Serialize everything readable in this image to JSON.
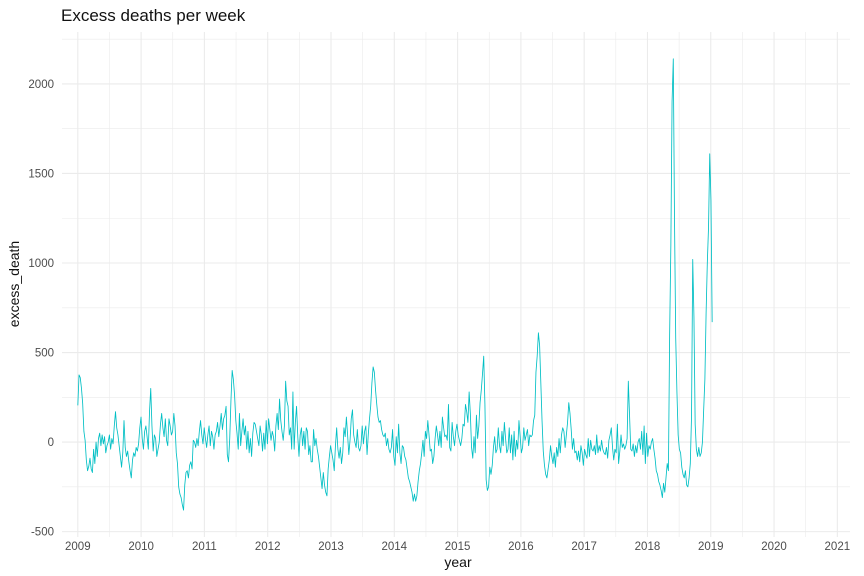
{
  "chart_data": {
    "type": "line",
    "title": "Excess deaths per week",
    "xlabel": "year",
    "ylabel": "excess_death",
    "xlim": [
      2008.75,
      2021.2
    ],
    "ylim": [
      -530,
      2290
    ],
    "xticks": [
      "2009",
      "2010",
      "2011",
      "2012",
      "2013",
      "2014",
      "2015",
      "2016",
      "2017",
      "2018",
      "2019",
      "2020",
      "2021"
    ],
    "yticks": [
      "-500",
      "0",
      "500",
      "1000",
      "1500",
      "2000"
    ],
    "grid": true,
    "legend": "none",
    "line_color": "#00BFC4",
    "series": [
      {
        "x_start": 2009.0,
        "x_step": 0.0192,
        "values": [
          205,
          375,
          360,
          300,
          215,
          60,
          10,
          -100,
          -160,
          -135,
          -90,
          -150,
          -170,
          -40,
          -120,
          0,
          -80,
          20,
          50,
          -20,
          40,
          -10,
          30,
          -60,
          -20,
          0,
          40,
          -40,
          20,
          -10,
          90,
          170,
          80,
          40,
          -20,
          -80,
          -140,
          -60,
          120,
          -30,
          -80,
          -50,
          -110,
          -160,
          -200,
          -100,
          -60,
          -80,
          -30,
          -50,
          -10,
          80,
          140,
          20,
          -40,
          60,
          90,
          30,
          -40,
          170,
          300,
          90,
          -50,
          40,
          20,
          -80,
          -40,
          0,
          100,
          160,
          80,
          30,
          130,
          10,
          -20,
          130,
          90,
          40,
          60,
          160,
          90,
          -60,
          -120,
          -250,
          -290,
          -310,
          -350,
          -380,
          -240,
          -170,
          -160,
          -200,
          -130,
          -110,
          -150,
          10,
          0,
          -30,
          20,
          -20,
          60,
          120,
          40,
          -10,
          80,
          20,
          -30,
          40,
          90,
          -20,
          60,
          30,
          -40,
          40,
          60,
          110,
          30,
          90,
          160,
          70,
          130,
          150,
          200,
          -70,
          -110,
          20,
          230,
          400,
          350,
          260,
          120,
          50,
          -40,
          160,
          -20,
          60,
          130,
          40,
          90,
          -40,
          60,
          -60,
          20,
          -80,
          50,
          110,
          100,
          60,
          20,
          -20,
          90,
          40,
          -50,
          50,
          -40,
          120,
          -10,
          130,
          70,
          10,
          60,
          30,
          -50,
          90,
          160,
          70,
          240,
          120,
          60,
          10,
          90,
          340,
          230,
          200,
          40,
          80,
          -40,
          280,
          -40,
          110,
          200,
          30,
          -80,
          40,
          80,
          -20,
          60,
          -40,
          80,
          60,
          -70,
          -20,
          -110,
          -110,
          70,
          -20,
          20,
          -40,
          -80,
          -140,
          -200,
          -260,
          -170,
          -240,
          -280,
          -300,
          -150,
          -80,
          -20,
          -60,
          -100,
          -160,
          -20,
          80,
          -40,
          -90,
          -30,
          -120,
          -60,
          80,
          30,
          140,
          40,
          -70,
          10,
          130,
          180,
          40,
          0,
          -30,
          70,
          -30,
          -50,
          -20,
          90,
          -10,
          60,
          90,
          -70,
          40,
          130,
          200,
          330,
          420,
          390,
          290,
          210,
          140,
          110,
          120,
          70,
          40,
          30,
          50,
          -20,
          20,
          -40,
          -60,
          -30,
          70,
          -80,
          -130,
          30,
          -60,
          100,
          -60,
          -120,
          -20,
          -30,
          -80,
          -100,
          -150,
          -200,
          -220,
          -250,
          -280,
          -330,
          -290,
          -330,
          -300,
          -220,
          -160,
          -120,
          -60,
          10,
          -80,
          60,
          20,
          120,
          40,
          -50,
          -40,
          -120,
          -80,
          20,
          90,
          40,
          -20,
          60,
          -30,
          140,
          80,
          30,
          40,
          10,
          210,
          -30,
          -50,
          110,
          30,
          -20,
          60,
          100,
          40,
          10,
          -20,
          20,
          100,
          90,
          210,
          170,
          110,
          280,
          160,
          -30,
          -90,
          30,
          -60,
          150,
          20,
          90,
          220,
          290,
          380,
          480,
          210,
          -210,
          -270,
          -250,
          -140,
          -180,
          -130,
          -30,
          30,
          -60,
          -40,
          80,
          -20,
          -60,
          60,
          -20,
          110,
          20,
          -60,
          -40,
          80,
          -60,
          40,
          -100,
          60,
          -80,
          10,
          -40,
          120,
          30,
          -60,
          -30,
          80,
          10,
          40,
          70,
          -20,
          40,
          30,
          40,
          120,
          150,
          390,
          480,
          610,
          540,
          330,
          120,
          -50,
          -130,
          -180,
          -200,
          -150,
          -100,
          -20,
          -80,
          -120,
          -60,
          -140,
          -30,
          -80,
          20,
          -60,
          40,
          80,
          60,
          -30,
          40,
          110,
          220,
          160,
          70,
          -40,
          20,
          -60,
          -50,
          -100,
          -50,
          -110,
          -20,
          -60,
          -130,
          -40,
          -70,
          -90,
          20,
          -80,
          10,
          -40,
          -50,
          -20,
          -70,
          40,
          -60,
          -20,
          -50,
          10,
          -40,
          -60,
          -70,
          -30,
          -90,
          10,
          40,
          80,
          -30,
          -100,
          -40,
          -60,
          100,
          -120,
          -50,
          40,
          -30,
          -10,
          -40,
          -20,
          20,
          340,
          150,
          -40,
          -50,
          -10,
          -80,
          -20,
          -60,
          0,
          20,
          -40,
          60,
          -70,
          90,
          -120,
          50,
          -80,
          -20,
          -40,
          0,
          20,
          -40,
          -90,
          -160,
          -180,
          -220,
          -240,
          -270,
          -310,
          -230,
          -280,
          -200,
          -120,
          -160,
          600,
          1100,
          1900,
          2140,
          1250,
          580,
          280,
          40,
          -40,
          -60,
          -140,
          -180,
          -200,
          -160,
          -240,
          -250,
          -200,
          -120,
          140,
          1020,
          700,
          100,
          -40,
          -80,
          -30,
          -80,
          -60,
          0,
          180,
          350,
          720,
          1000,
          1200,
          1610,
          1350,
          670
        ]
      }
    ]
  }
}
